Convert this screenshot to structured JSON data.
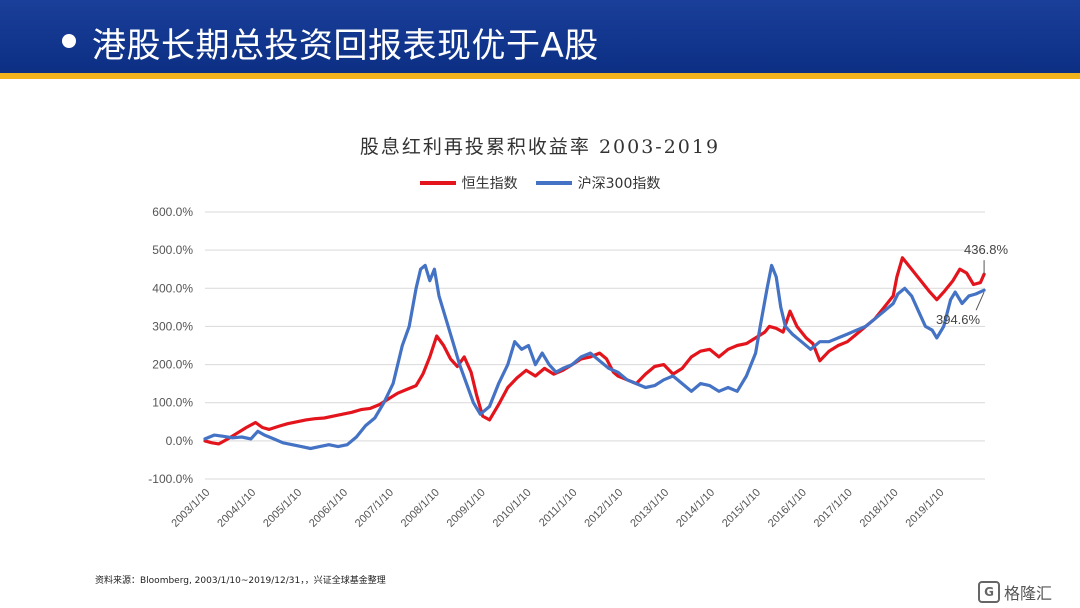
{
  "slide": {
    "title": "港股长期总投资回报表现优于A股",
    "source": "资料来源：Bloomberg, 2003/1/10~2019/12/31，，兴证全球基金整理",
    "logo_text": "格隆汇",
    "logo_mark": "G"
  },
  "colors": {
    "header": "#0c2f84",
    "stripe": "#f2b21b",
    "hsi": "#e3141c",
    "csi300": "#4472c4"
  },
  "chart_data": {
    "type": "line",
    "title": "股息红利再投累积收益率 2003-2019",
    "xlabel": "",
    "ylabel": "",
    "ylim": [
      -100,
      600
    ],
    "yticks": [
      "-100.0%",
      "0.0%",
      "100.0%",
      "200.0%",
      "300.0%",
      "400.0%",
      "500.0%",
      "600.0%"
    ],
    "ytick_values": [
      -100,
      0,
      100,
      200,
      300,
      400,
      500,
      600
    ],
    "xticks": [
      "2003/1/10",
      "2004/1/10",
      "2005/1/10",
      "2006/1/10",
      "2007/1/10",
      "2008/1/10",
      "2009/1/10",
      "2010/1/10",
      "2011/1/10",
      "2012/1/10",
      "2013/1/10",
      "2014/1/10",
      "2015/1/10",
      "2016/1/10",
      "2017/1/10",
      "2018/1/10",
      "2019/1/10"
    ],
    "xlim": [
      2003.0,
      2020.0
    ],
    "grid": true,
    "legend_position": "top-center",
    "annotations": [
      {
        "text": "436.8%",
        "series": 0
      },
      {
        "text": "394.6%",
        "series": 1
      }
    ],
    "series": [
      {
        "name": "恒生指数",
        "x": [
          2003.0,
          2003.15,
          2003.3,
          2003.5,
          2003.7,
          2003.9,
          2004.1,
          2004.25,
          2004.4,
          2004.6,
          2004.8,
          2005.0,
          2005.2,
          2005.4,
          2005.6,
          2005.8,
          2006.0,
          2006.2,
          2006.4,
          2006.6,
          2006.8,
          2007.0,
          2007.2,
          2007.4,
          2007.6,
          2007.75,
          2007.9,
          2008.05,
          2008.2,
          2008.35,
          2008.5,
          2008.65,
          2008.8,
          2008.92,
          2009.05,
          2009.2,
          2009.4,
          2009.6,
          2009.8,
          2010.0,
          2010.2,
          2010.4,
          2010.6,
          2010.8,
          2011.0,
          2011.2,
          2011.4,
          2011.6,
          2011.75,
          2011.9,
          2012.0,
          2012.2,
          2012.4,
          2012.6,
          2012.8,
          2013.0,
          2013.2,
          2013.4,
          2013.6,
          2013.8,
          2014.0,
          2014.2,
          2014.4,
          2014.6,
          2014.8,
          2015.0,
          2015.2,
          2015.3,
          2015.45,
          2015.6,
          2015.75,
          2015.9,
          2016.1,
          2016.25,
          2016.4,
          2016.6,
          2016.8,
          2017.0,
          2017.2,
          2017.4,
          2017.6,
          2017.8,
          2018.0,
          2018.08,
          2018.2,
          2018.4,
          2018.6,
          2018.8,
          2018.95,
          2019.1,
          2019.3,
          2019.45,
          2019.6,
          2019.75,
          2019.9,
          2019.98
        ],
        "values": [
          0,
          -5,
          -8,
          5,
          20,
          35,
          48,
          35,
          30,
          38,
          45,
          50,
          55,
          58,
          60,
          65,
          70,
          75,
          82,
          85,
          95,
          110,
          125,
          135,
          145,
          175,
          220,
          275,
          250,
          215,
          195,
          220,
          180,
          120,
          65,
          55,
          95,
          140,
          165,
          185,
          170,
          190,
          175,
          185,
          200,
          215,
          220,
          230,
          215,
          180,
          170,
          160,
          150,
          175,
          195,
          200,
          175,
          190,
          220,
          235,
          240,
          220,
          240,
          250,
          255,
          270,
          285,
          300,
          295,
          285,
          340,
          300,
          270,
          255,
          210,
          235,
          250,
          260,
          280,
          300,
          320,
          350,
          380,
          430,
          480,
          450,
          420,
          390,
          370,
          390,
          420,
          450,
          440,
          410,
          415,
          437
        ]
      },
      {
        "name": "沪深300指数",
        "x": [
          2003.0,
          2003.2,
          2003.4,
          2003.6,
          2003.8,
          2004.0,
          2004.15,
          2004.3,
          2004.5,
          2004.7,
          2004.9,
          2005.1,
          2005.3,
          2005.5,
          2005.7,
          2005.9,
          2006.1,
          2006.3,
          2006.5,
          2006.7,
          2006.9,
          2007.1,
          2007.3,
          2007.45,
          2007.6,
          2007.7,
          2007.8,
          2007.9,
          2008.0,
          2008.1,
          2008.25,
          2008.4,
          2008.55,
          2008.7,
          2008.85,
          2009.0,
          2009.2,
          2009.4,
          2009.6,
          2009.75,
          2009.9,
          2010.05,
          2010.2,
          2010.35,
          2010.5,
          2010.65,
          2010.8,
          2011.0,
          2011.2,
          2011.4,
          2011.6,
          2011.8,
          2012.0,
          2012.2,
          2012.4,
          2012.6,
          2012.8,
          2013.0,
          2013.2,
          2013.4,
          2013.6,
          2013.8,
          2014.0,
          2014.2,
          2014.4,
          2014.6,
          2014.8,
          2015.0,
          2015.1,
          2015.25,
          2015.35,
          2015.45,
          2015.55,
          2015.65,
          2015.8,
          2016.0,
          2016.2,
          2016.4,
          2016.6,
          2016.8,
          2017.0,
          2017.2,
          2017.4,
          2017.6,
          2017.8,
          2018.0,
          2018.1,
          2018.25,
          2018.4,
          2018.55,
          2018.7,
          2018.85,
          2018.95,
          2019.1,
          2019.25,
          2019.35,
          2019.5,
          2019.65,
          2019.8,
          2019.98
        ],
        "values": [
          5,
          15,
          12,
          8,
          10,
          5,
          25,
          15,
          5,
          -5,
          -10,
          -15,
          -20,
          -15,
          -10,
          -15,
          -10,
          10,
          40,
          60,
          100,
          150,
          250,
          300,
          400,
          450,
          460,
          420,
          450,
          380,
          320,
          260,
          200,
          150,
          100,
          70,
          90,
          150,
          200,
          260,
          240,
          250,
          200,
          230,
          200,
          180,
          190,
          200,
          220,
          230,
          210,
          190,
          180,
          160,
          150,
          140,
          145,
          160,
          170,
          150,
          130,
          150,
          145,
          130,
          140,
          130,
          170,
          230,
          300,
          400,
          460,
          430,
          350,
          300,
          280,
          260,
          240,
          260,
          260,
          270,
          280,
          290,
          300,
          320,
          340,
          360,
          385,
          400,
          380,
          340,
          300,
          290,
          270,
          300,
          370,
          390,
          360,
          380,
          385,
          395
        ]
      }
    ]
  }
}
